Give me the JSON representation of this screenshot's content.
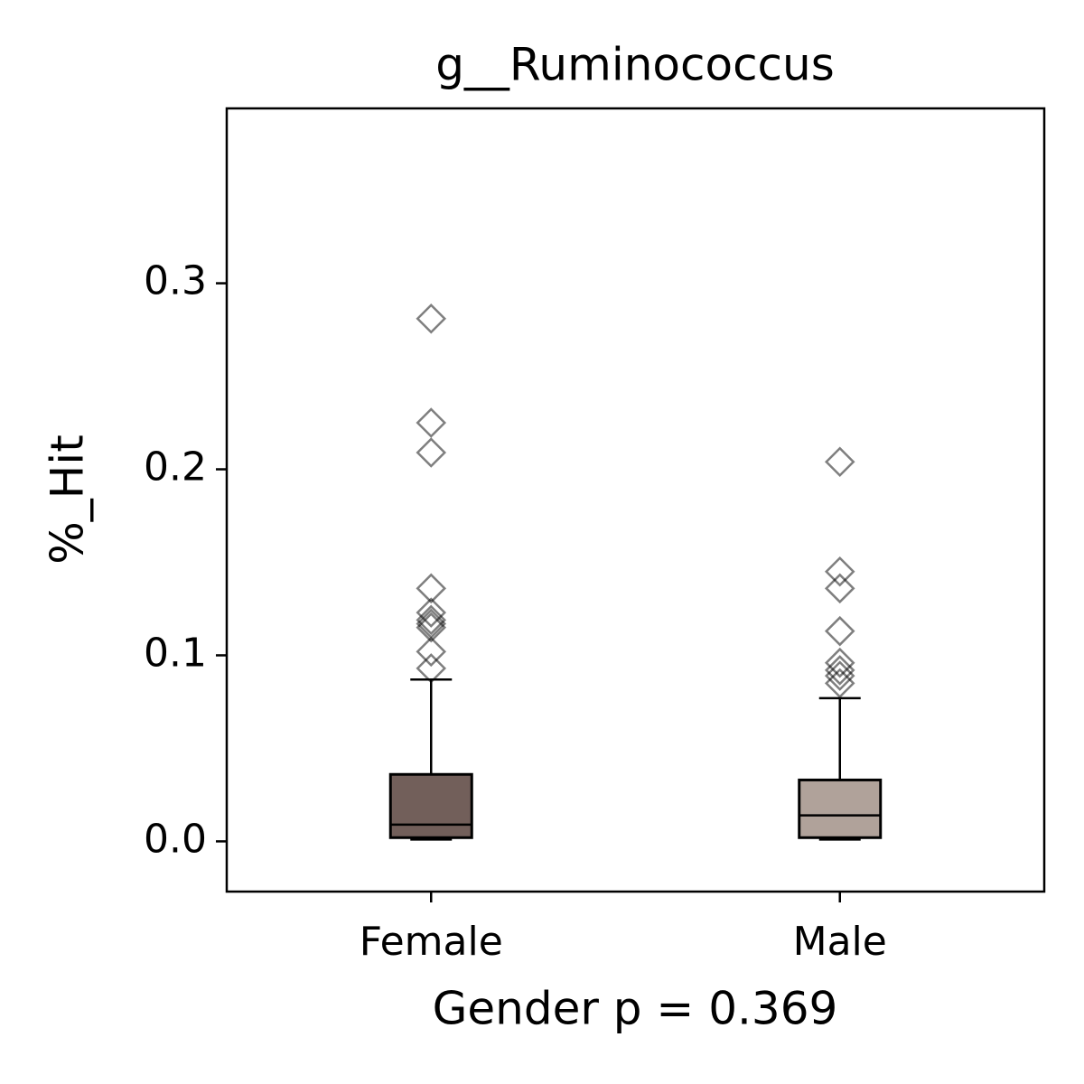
{
  "chart_data": {
    "type": "box",
    "title": "g__Ruminococcus",
    "xlabel": "Gender p = 0.369",
    "ylabel": "%_Hit",
    "categories": [
      "Female",
      "Male"
    ],
    "colors": [
      "#725f5a",
      "#b0a29a"
    ],
    "boxes": [
      {
        "min": 0.001,
        "q1": 0.002,
        "median": 0.009,
        "q3": 0.036,
        "max": 0.087,
        "outliers": [
          0.281,
          0.225,
          0.209,
          0.136,
          0.123,
          0.119,
          0.117,
          0.115,
          0.102,
          0.093
        ]
      },
      {
        "min": 0.001,
        "q1": 0.002,
        "median": 0.014,
        "q3": 0.033,
        "max": 0.077,
        "outliers": [
          0.204,
          0.145,
          0.136,
          0.113,
          0.096,
          0.092,
          0.089,
          0.085
        ]
      }
    ],
    "ylim": [
      -0.027,
      0.394
    ],
    "yticks": [
      {
        "value": 0,
        "label": "0.0"
      },
      0.1,
      0.2,
      0.3
    ]
  }
}
